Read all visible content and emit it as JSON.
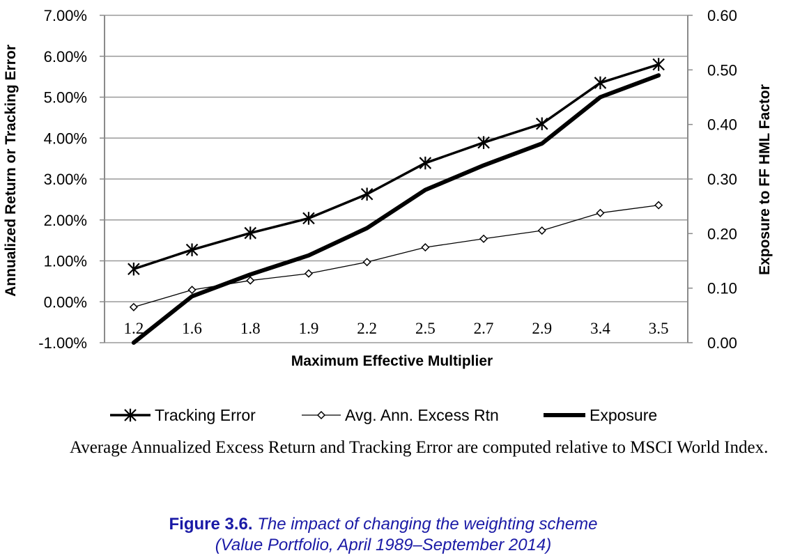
{
  "chart_data": {
    "type": "line",
    "categories": [
      "1.2",
      "1.6",
      "1.8",
      "1.9",
      "2.2",
      "2.5",
      "2.7",
      "2.9",
      "3.4",
      "3.5"
    ],
    "xlabel": "Maximum Effective Multiplier",
    "ylabel": "Annualized Return or Tracking Error",
    "y2label": "Exposure to FF HML Factor",
    "ylim": [
      -1.0,
      7.0
    ],
    "y2lim": [
      0.0,
      0.6
    ],
    "yticks": [
      "7.00%",
      "6.00%",
      "5.00%",
      "4.00%",
      "3.00%",
      "2.00%",
      "1.00%",
      "0.00%",
      "-1.00%"
    ],
    "y2ticks": [
      "0.60",
      "0.50",
      "0.40",
      "0.30",
      "0.20",
      "0.10",
      "0.00"
    ],
    "grid": "horizontal",
    "legend_position": "bottom",
    "series": [
      {
        "name": "Tracking Error",
        "axis": "left",
        "unit": "%",
        "marker": "asterisk",
        "color": "#000000",
        "values": [
          0.8,
          1.27,
          1.68,
          2.04,
          2.63,
          3.39,
          3.89,
          4.35,
          5.35,
          5.8
        ]
      },
      {
        "name": "Avg. Ann. Excess Rtn",
        "axis": "left",
        "unit": "%",
        "marker": "diamond",
        "color": "#000000",
        "values": [
          -0.13,
          0.29,
          0.52,
          0.69,
          0.97,
          1.33,
          1.54,
          1.74,
          2.17,
          2.36
        ]
      },
      {
        "name": "Exposure",
        "axis": "right",
        "marker": "none",
        "color": "#000000",
        "values": [
          0.0,
          0.085,
          0.125,
          0.16,
          0.21,
          0.28,
          0.325,
          0.365,
          0.45,
          0.49
        ]
      }
    ]
  },
  "note": "Average Annualized Excess Return and Tracking Error are computed relative to MSCI World Index.",
  "caption": {
    "number": "Figure 3.6.",
    "title_line1": "The impact of changing the weighting scheme",
    "title_line2": "(Value Portfolio, April 1989–September 2014)"
  }
}
